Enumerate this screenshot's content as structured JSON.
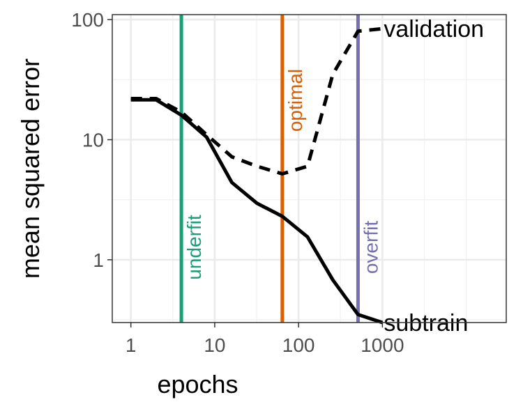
{
  "chart_data": {
    "type": "line",
    "title": "",
    "xlabel": "epochs",
    "ylabel": "mean squared error",
    "xscale": "log10",
    "yscale": "log10",
    "xlim": [
      0.6,
      30000
    ],
    "ylim": [
      0.3,
      110
    ],
    "xticks": [
      1,
      10,
      100,
      1000
    ],
    "xtick_labels": [
      "1",
      "10",
      "100",
      "1000"
    ],
    "yticks": [
      1,
      10,
      100
    ],
    "ytick_labels": [
      "1",
      "10",
      "100"
    ],
    "grid": true,
    "legend": "none",
    "series": [
      {
        "name": "subtrain",
        "line_style": "solid",
        "color": "#000000",
        "x": [
          1,
          2,
          4,
          8,
          16,
          32,
          64,
          128,
          256,
          512,
          1000
        ],
        "y": [
          21.5,
          21.5,
          16,
          10.5,
          4.4,
          2.95,
          2.3,
          1.55,
          0.68,
          0.35,
          0.3
        ]
      },
      {
        "name": "validation",
        "line_style": "dashed",
        "color": "#000000",
        "x": [
          1,
          2,
          4,
          8,
          16,
          32,
          64,
          128,
          256,
          512,
          1000
        ],
        "y": [
          22,
          22,
          17,
          11,
          7.2,
          6.0,
          5.2,
          6.0,
          35,
          80,
          84
        ]
      }
    ],
    "vlines": [
      {
        "label": "underfit",
        "x": 4,
        "color": "#1b9e77",
        "label_anchor": "bottom"
      },
      {
        "label": "optimal",
        "x": 64,
        "color": "#d95f02",
        "label_anchor": "top"
      },
      {
        "label": "overfit",
        "x": 512,
        "color": "#7570b3",
        "label_anchor": "bottom"
      }
    ]
  }
}
